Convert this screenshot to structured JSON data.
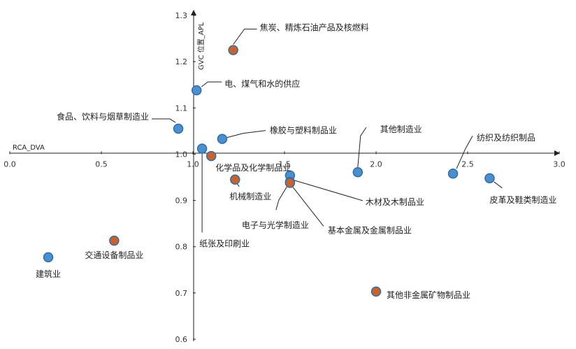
{
  "chart_data": {
    "type": "scatter",
    "xlabel": "RCA_DVA",
    "ylabel": "GVC 位置_APL",
    "xlim": [
      0,
      3.0
    ],
    "ylim": [
      0.6,
      1.3
    ],
    "x_ticks": [
      "0.0",
      "0.5",
      "1.0",
      "1.5",
      "2.0",
      "2.5",
      "3.0"
    ],
    "y_ticks": [
      "0.6",
      "0.7",
      "0.8",
      "0.9",
      "1.0",
      "1.1",
      "1.2",
      "1.3"
    ],
    "colors": {
      "blue": "#4a8fd0",
      "orange": "#c9622d",
      "edge": "#2f6ea6"
    },
    "points": [
      {
        "label": "焦炭、精炼石油产品及核燃料",
        "x": 1.22,
        "y": 1.225,
        "color": "orange"
      },
      {
        "label": "电、煤气和水的供应",
        "x": 1.02,
        "y": 1.138,
        "color": "blue"
      },
      {
        "label": "食品、饮料与烟草制造业",
        "x": 0.92,
        "y": 1.055,
        "color": "blue"
      },
      {
        "label": "橡胶与塑料制品业",
        "x": 1.16,
        "y": 1.033,
        "color": "blue"
      },
      {
        "label": "纸张及印刷业",
        "x": 1.05,
        "y": 1.012,
        "color": "blue"
      },
      {
        "label": "化学品及化学制品业",
        "x": 1.1,
        "y": 0.996,
        "color": "orange"
      },
      {
        "label": "机械制造业",
        "x": 1.23,
        "y": 0.945,
        "color": "orange"
      },
      {
        "label": "木材及木制品业",
        "x": 1.53,
        "y": 0.954,
        "color": "blue"
      },
      {
        "label": "电子与光学制造业",
        "x": 1.53,
        "y": 0.94,
        "color": "blue"
      },
      {
        "label": "基本金属及金属制品业",
        "x": 1.53,
        "y": 0.938,
        "color": "orange"
      },
      {
        "label": "其他制造业",
        "x": 1.9,
        "y": 0.961,
        "color": "blue"
      },
      {
        "label": "纺织及纺织制品",
        "x": 2.42,
        "y": 0.958,
        "color": "blue"
      },
      {
        "label": "皮革及鞋类制造业",
        "x": 2.62,
        "y": 0.948,
        "color": "blue"
      },
      {
        "label": "交通设备制品业",
        "x": 0.57,
        "y": 0.813,
        "color": "orange"
      },
      {
        "label": "建筑业",
        "x": 0.21,
        "y": 0.777,
        "color": "blue"
      },
      {
        "label": "其他非金属矿物制品业",
        "x": 2.0,
        "y": 0.703,
        "color": "orange"
      }
    ]
  }
}
